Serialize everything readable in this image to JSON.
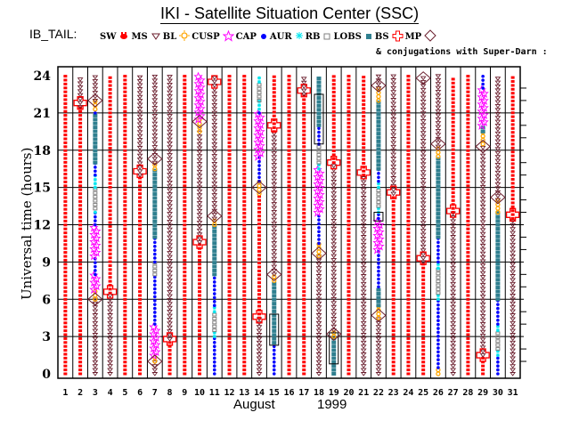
{
  "chart_data": {
    "type": "scatter",
    "title": "IKI - Satellite Situation Center (SSC)",
    "legend_prefix": "IB_TAIL:",
    "legend_placement": "top",
    "legend": [
      {
        "label": "SW",
        "marker": "none",
        "color": "#000000"
      },
      {
        "label": "MS",
        "marker": "red-blob",
        "color": "#ff0000"
      },
      {
        "label": "BL",
        "marker": "triangle-down",
        "color": "#6b1f2e"
      },
      {
        "label": "CUSP",
        "marker": "sun",
        "color": "#ffa500"
      },
      {
        "label": "CAP",
        "marker": "star",
        "color": "#ff00ff"
      },
      {
        "label": "AUR",
        "marker": "dot",
        "color": "#0000ff"
      },
      {
        "label": "RB",
        "marker": "asterisk",
        "color": "#00e5ee"
      },
      {
        "label": "LOBS",
        "marker": "square-open",
        "color": "#808080"
      },
      {
        "label": "BS",
        "marker": "square-filled",
        "color": "#2f7f8f"
      },
      {
        "label": "MP",
        "marker": "cross-open",
        "color": "#ff0000"
      },
      {
        "label": "",
        "marker": "diamond-open",
        "color": "#6b1f2e"
      }
    ],
    "conjugation_note": "& conjugations with Super-Darn :",
    "xlabel_month": "August",
    "xlabel_year": "1999",
    "ylabel": "Universal time (hours)",
    "xlim": [
      1,
      31
    ],
    "ylim": [
      0,
      24
    ],
    "yticks": [
      "0",
      "3",
      "6",
      "9",
      "12",
      "15",
      "18",
      "21",
      "24"
    ],
    "xticks": [
      "1",
      "2",
      "3",
      "4",
      "5",
      "6",
      "7",
      "8",
      "9",
      "10",
      "11",
      "12",
      "13",
      "14",
      "15",
      "16",
      "17",
      "18",
      "19",
      "20",
      "21",
      "22",
      "23",
      "24",
      "25",
      "26",
      "27",
      "28",
      "29",
      "30",
      "31"
    ],
    "grid": true,
    "days": [
      {
        "day": 1,
        "segments": [
          {
            "type": "MS",
            "from": 0,
            "to": 24
          }
        ]
      },
      {
        "day": 2,
        "segments": [
          {
            "type": "MS",
            "from": 0,
            "to": 21.5
          },
          {
            "type": "BL",
            "from": 21.5,
            "to": 24
          }
        ],
        "mp": [
          21.8
        ]
      },
      {
        "day": 3,
        "segments": [
          {
            "type": "BL",
            "from": 0,
            "to": 6
          },
          {
            "type": "CUSP",
            "from": 6,
            "to": 6.8
          },
          {
            "type": "CAP",
            "from": 6.8,
            "to": 8
          },
          {
            "type": "AUR",
            "from": 8,
            "to": 9.5
          },
          {
            "type": "CAP",
            "from": 9.5,
            "to": 12
          },
          {
            "type": "AUR",
            "from": 12,
            "to": 13
          },
          {
            "type": "RB",
            "from": 13,
            "to": 13.3
          },
          {
            "type": "LOBS",
            "from": 13.3,
            "to": 15
          },
          {
            "type": "RB",
            "from": 15,
            "to": 16
          },
          {
            "type": "AUR",
            "from": 16,
            "to": 17
          },
          {
            "type": "BS",
            "from": 17,
            "to": 21
          },
          {
            "type": "AUR",
            "from": 21,
            "to": 21.3
          },
          {
            "type": "CUSP",
            "from": 21.3,
            "to": 22
          },
          {
            "type": "BL",
            "from": 22,
            "to": 24
          }
        ],
        "diamonds": [
          6,
          22
        ]
      },
      {
        "day": 4,
        "segments": [
          {
            "type": "BL",
            "from": 0,
            "to": 6.5
          },
          {
            "type": "MS",
            "from": 6.5,
            "to": 24
          }
        ],
        "mp": [
          6.6
        ]
      },
      {
        "day": 5,
        "segments": [
          {
            "type": "MS",
            "from": 0,
            "to": 24
          }
        ]
      },
      {
        "day": 6,
        "segments": [
          {
            "type": "MS",
            "from": 0,
            "to": 16
          },
          {
            "type": "BL",
            "from": 16,
            "to": 24
          }
        ],
        "mp": [
          16.3
        ]
      },
      {
        "day": 7,
        "segments": [
          {
            "type": "BL",
            "from": 0,
            "to": 1
          },
          {
            "type": "CUSP",
            "from": 1,
            "to": 1.5
          },
          {
            "type": "CAP",
            "from": 1.5,
            "to": 4
          },
          {
            "type": "AUR",
            "from": 4,
            "to": 8
          },
          {
            "type": "LOBS",
            "from": 8,
            "to": 9
          },
          {
            "type": "AUR",
            "from": 9,
            "to": 11
          },
          {
            "type": "BS",
            "from": 11,
            "to": 16.5
          },
          {
            "type": "CUSP",
            "from": 16.5,
            "to": 17
          },
          {
            "type": "BL",
            "from": 17,
            "to": 24
          }
        ],
        "diamonds": [
          1,
          17.3
        ]
      },
      {
        "day": 8,
        "segments": [
          {
            "type": "MS",
            "from": 0,
            "to": 2.8
          },
          {
            "type": "BL",
            "from": 2.8,
            "to": 24
          }
        ],
        "mp": [
          2.8
        ]
      },
      {
        "day": 9,
        "segments": [
          {
            "type": "MS",
            "from": 0,
            "to": 24
          }
        ]
      },
      {
        "day": 10,
        "segments": [
          {
            "type": "MS",
            "from": 0,
            "to": 10.6
          },
          {
            "type": "BL",
            "from": 10.6,
            "to": 19.5
          },
          {
            "type": "CUSP",
            "from": 19.5,
            "to": 20.5
          },
          {
            "type": "CAP",
            "from": 20.5,
            "to": 24
          }
        ],
        "mp": [
          10.6
        ],
        "diamonds": [
          20.3
        ]
      },
      {
        "day": 11,
        "segments": [
          {
            "type": "AUR",
            "from": 0,
            "to": 3
          },
          {
            "type": "RB",
            "from": 3,
            "to": 3.5
          },
          {
            "type": "LOBS",
            "from": 3.5,
            "to": 5
          },
          {
            "type": "RB",
            "from": 5,
            "to": 5.5
          },
          {
            "type": "AUR",
            "from": 5.5,
            "to": 8
          },
          {
            "type": "BS",
            "from": 8,
            "to": 12
          },
          {
            "type": "CUSP",
            "from": 12,
            "to": 12.5
          },
          {
            "type": "BL",
            "from": 12.5,
            "to": 24
          }
        ],
        "mp": [
          23.5
        ],
        "diamonds": [
          12.7
        ]
      },
      {
        "day": 12,
        "segments": [
          {
            "type": "MS",
            "from": 0,
            "to": 24
          }
        ]
      },
      {
        "day": 13,
        "segments": [
          {
            "type": "MS",
            "from": 0,
            "to": 24
          }
        ]
      },
      {
        "day": 14,
        "segments": [
          {
            "type": "BL",
            "from": 0,
            "to": 4.5
          },
          {
            "type": "MS",
            "from": 4.5,
            "to": 14.5
          },
          {
            "type": "CUSP",
            "from": 14.5,
            "to": 15.5
          },
          {
            "type": "AUR",
            "from": 15.5,
            "to": 17.5
          },
          {
            "type": "CAP",
            "from": 17.5,
            "to": 21
          },
          {
            "type": "AUR",
            "from": 21,
            "to": 21.3
          },
          {
            "type": "RB",
            "from": 21.3,
            "to": 22
          },
          {
            "type": "LOBS",
            "from": 22,
            "to": 23.5
          },
          {
            "type": "RB",
            "from": 23.5,
            "to": 24
          }
        ],
        "mp": [
          4.6
        ],
        "diamonds": [
          15
        ]
      },
      {
        "day": 15,
        "segments": [
          {
            "type": "AUR",
            "from": 0,
            "to": 2.5
          },
          {
            "type": "BS",
            "from": 2.5,
            "to": 7.5
          },
          {
            "type": "CUSP",
            "from": 7.5,
            "to": 8
          },
          {
            "type": "BL",
            "from": 8,
            "to": 19.5
          },
          {
            "type": "MS",
            "from": 19.5,
            "to": 24
          }
        ],
        "mp": [
          20
        ],
        "diamonds": [
          8
        ],
        "boxes": [
          [
            2.3,
            4.8
          ]
        ]
      },
      {
        "day": 16,
        "segments": [
          {
            "type": "MS",
            "from": 0,
            "to": 24
          }
        ]
      },
      {
        "day": 17,
        "segments": [
          {
            "type": "MS",
            "from": 0,
            "to": 22.5
          },
          {
            "type": "BL",
            "from": 22.5,
            "to": 24
          }
        ],
        "mp": [
          22.8
        ]
      },
      {
        "day": 18,
        "segments": [
          {
            "type": "BL",
            "from": 0,
            "to": 9.5
          },
          {
            "type": "CUSP",
            "from": 9.5,
            "to": 10.5
          },
          {
            "type": "AUR",
            "from": 10.5,
            "to": 13
          },
          {
            "type": "CAP",
            "from": 13,
            "to": 16.5
          },
          {
            "type": "RB",
            "from": 16.5,
            "to": 17
          },
          {
            "type": "LOBS",
            "from": 17,
            "to": 18.5
          },
          {
            "type": "AUR",
            "from": 18.5,
            "to": 20
          },
          {
            "type": "BS",
            "from": 20,
            "to": 24
          }
        ],
        "diamonds": [
          9.7
        ],
        "boxes": [
          [
            18.5,
            22.5
          ]
        ]
      },
      {
        "day": 19,
        "segments": [
          {
            "type": "BS",
            "from": 0,
            "to": 3
          },
          {
            "type": "CUSP",
            "from": 3,
            "to": 3.5
          },
          {
            "type": "BL",
            "from": 3.5,
            "to": 17
          },
          {
            "type": "MS",
            "from": 17,
            "to": 24
          }
        ],
        "mp": [
          17
        ],
        "diamonds": [
          3.2
        ],
        "boxes": [
          [
            0.8,
            3.3
          ]
        ]
      },
      {
        "day": 20,
        "segments": [
          {
            "type": "MS",
            "from": 0,
            "to": 24
          }
        ]
      },
      {
        "day": 21,
        "segments": [
          {
            "type": "BL",
            "from": 0,
            "to": 16
          },
          {
            "type": "MS",
            "from": 16,
            "to": 24
          }
        ],
        "mp": [
          16.2
        ]
      },
      {
        "day": 22,
        "segments": [
          {
            "type": "BL",
            "from": 0,
            "to": 4.5
          },
          {
            "type": "CUSP",
            "from": 4.5,
            "to": 5.5
          },
          {
            "type": "BS",
            "from": 5.5,
            "to": 7
          },
          {
            "type": "AUR",
            "from": 7,
            "to": 10
          },
          {
            "type": "CAP",
            "from": 10,
            "to": 12.5
          },
          {
            "type": "AUR",
            "from": 12.5,
            "to": 13
          },
          {
            "type": "RB",
            "from": 13,
            "to": 13.5
          },
          {
            "type": "LOBS",
            "from": 13.5,
            "to": 15
          },
          {
            "type": "RB",
            "from": 15,
            "to": 15.5
          },
          {
            "type": "AUR",
            "from": 15.5,
            "to": 16.5
          },
          {
            "type": "BS",
            "from": 16.5,
            "to": 22
          },
          {
            "type": "CUSP",
            "from": 22,
            "to": 23
          },
          {
            "type": "BL",
            "from": 23,
            "to": 24
          }
        ],
        "diamonds": [
          4.7,
          23.2
        ],
        "boxes": [
          [
            12.3,
            13
          ]
        ]
      },
      {
        "day": 23,
        "segments": [
          {
            "type": "MS",
            "from": 0,
            "to": 14.5
          },
          {
            "type": "BL",
            "from": 14.5,
            "to": 24
          }
        ],
        "mp": [
          14.6
        ]
      },
      {
        "day": 24,
        "segments": [
          {
            "type": "MS",
            "from": 0,
            "to": 24
          }
        ]
      },
      {
        "day": 25,
        "segments": [
          {
            "type": "MS",
            "from": 0,
            "to": 9
          },
          {
            "type": "BL",
            "from": 9,
            "to": 24
          }
        ],
        "mp": [
          9.3
        ],
        "diamonds": [
          23.8
        ]
      },
      {
        "day": 26,
        "segments": [
          {
            "type": "CUSP",
            "from": 0,
            "to": 0.5
          },
          {
            "type": "AUR",
            "from": 0.5,
            "to": 6
          },
          {
            "type": "RB",
            "from": 6,
            "to": 6.5
          },
          {
            "type": "LOBS",
            "from": 6.5,
            "to": 8.5
          },
          {
            "type": "RB",
            "from": 8.5,
            "to": 9
          },
          {
            "type": "AUR",
            "from": 9,
            "to": 11
          },
          {
            "type": "BS",
            "from": 11,
            "to": 17.5
          },
          {
            "type": "CUSP",
            "from": 17.5,
            "to": 18.3
          },
          {
            "type": "BL",
            "from": 18.3,
            "to": 24
          }
        ],
        "diamonds": [
          18.5
        ]
      },
      {
        "day": 27,
        "segments": [
          {
            "type": "BL",
            "from": 0,
            "to": 13
          },
          {
            "type": "MS",
            "from": 13,
            "to": 24
          }
        ],
        "mp": [
          13.1
        ]
      },
      {
        "day": 28,
        "segments": [
          {
            "type": "MS",
            "from": 0,
            "to": 24
          }
        ]
      },
      {
        "day": 29,
        "segments": [
          {
            "type": "MS",
            "from": 0,
            "to": 1.5
          },
          {
            "type": "BL",
            "from": 1.5,
            "to": 18.5
          },
          {
            "type": "CUSP",
            "from": 18.5,
            "to": 19.5
          },
          {
            "type": "BS",
            "from": 19.5,
            "to": 20
          },
          {
            "type": "CAP",
            "from": 20,
            "to": 23
          },
          {
            "type": "AUR",
            "from": 23,
            "to": 24
          }
        ],
        "mp": [
          1.5
        ],
        "diamonds": [
          18.3
        ]
      },
      {
        "day": 30,
        "segments": [
          {
            "type": "AUR",
            "from": 0,
            "to": 1.5
          },
          {
            "type": "RB",
            "from": 1.5,
            "to": 2
          },
          {
            "type": "LOBS",
            "from": 2,
            "to": 3.5
          },
          {
            "type": "RB",
            "from": 3.5,
            "to": 4
          },
          {
            "type": "AUR",
            "from": 4,
            "to": 6
          },
          {
            "type": "BS",
            "from": 6,
            "to": 13
          },
          {
            "type": "CUSP",
            "from": 13,
            "to": 14
          },
          {
            "type": "BL",
            "from": 14,
            "to": 24
          }
        ],
        "diamonds": [
          14.2
        ]
      },
      {
        "day": 31,
        "segments": [
          {
            "type": "BL",
            "from": 0,
            "to": 12.5
          },
          {
            "type": "MS",
            "from": 12.5,
            "to": 24
          }
        ],
        "mp": [
          12.8
        ]
      }
    ]
  }
}
